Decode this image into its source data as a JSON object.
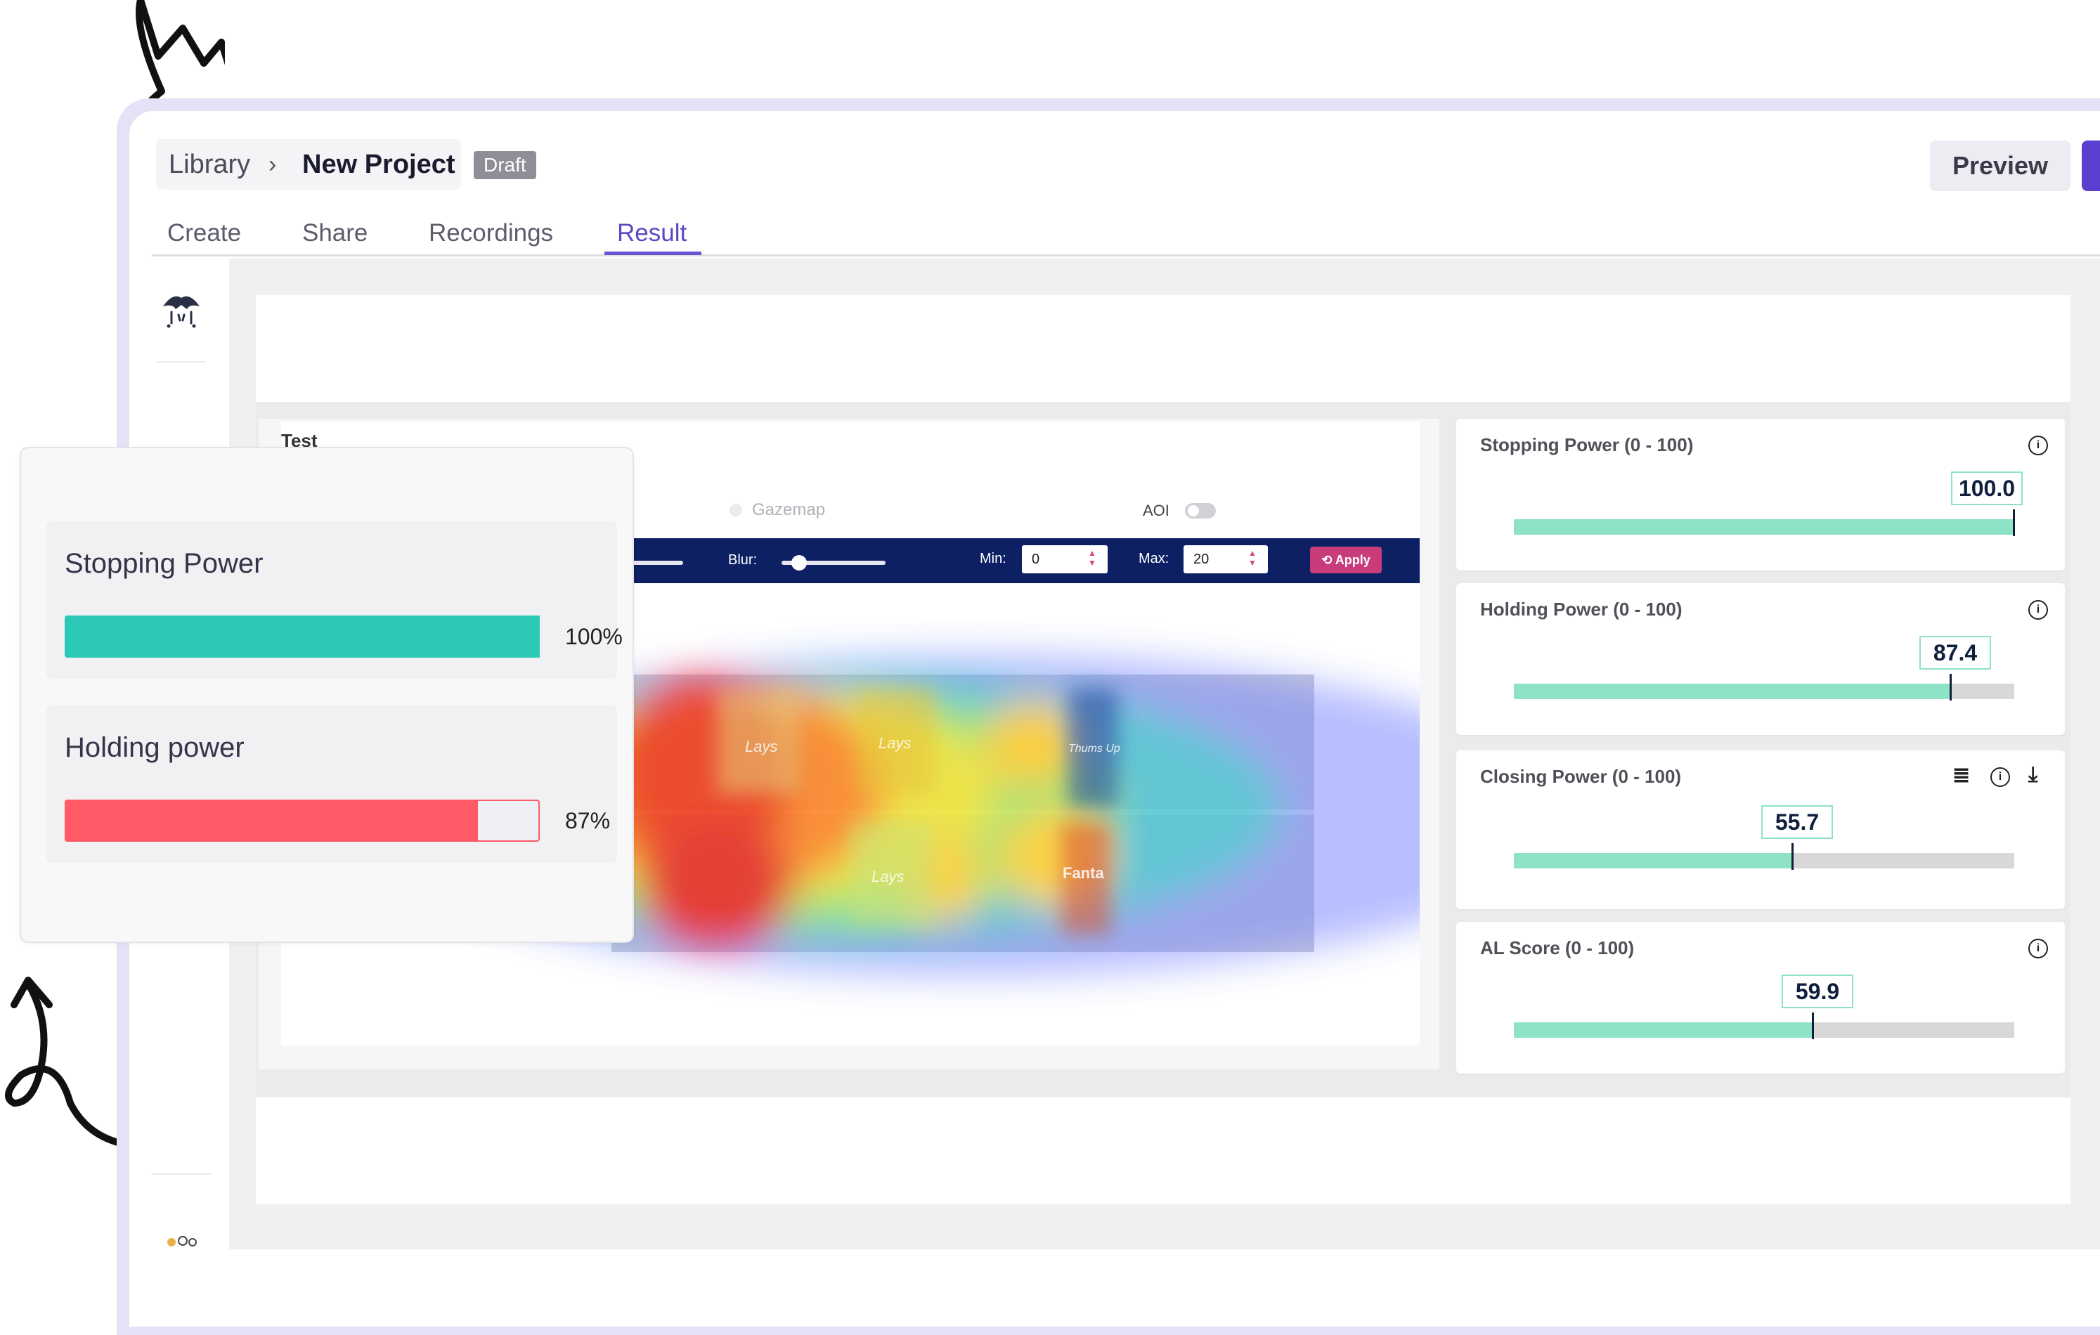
{
  "header": {
    "breadcrumb_root": "Library",
    "breadcrumb_separator": "›",
    "project_name": "New Project",
    "status_badge": "Draft",
    "preview_label": "Preview"
  },
  "tabs": [
    {
      "label": "Create",
      "active": false
    },
    {
      "label": "Share",
      "active": false
    },
    {
      "label": "Recordings",
      "active": false
    },
    {
      "label": "Result",
      "active": true
    }
  ],
  "heatmap_panel": {
    "title": "Test",
    "gazemap_label": "Gazemap",
    "aoi_label": "AOI",
    "aoi_enabled": false,
    "blur_label": "Blur:",
    "min_label": "Min:",
    "min_value": "0",
    "max_label": "Max:",
    "max_value": "20",
    "apply_label": "Apply",
    "shelf_labels": [
      "Lays",
      "Lays",
      "Lays",
      "Thums Up",
      "Fanta"
    ]
  },
  "metrics": [
    {
      "title": "Stopping Power (0 - 100)",
      "value": "100.0",
      "fraction": 1.0,
      "icons": [
        "info-icon"
      ]
    },
    {
      "title": "Holding Power (0 - 100)",
      "value": "87.4",
      "fraction": 0.874,
      "icons": [
        "info-icon"
      ]
    },
    {
      "title": "Closing Power (0 - 100)",
      "value": "55.7",
      "fraction": 0.557,
      "icons": [
        "report-icon",
        "info-icon",
        "download-icon"
      ]
    },
    {
      "title": "AL Score (0 - 100)",
      "value": "59.9",
      "fraction": 0.599,
      "icons": [
        "info-icon"
      ]
    }
  ],
  "popup": {
    "items": [
      {
        "label": "Stopping Power",
        "percent": "100%",
        "fraction": 1.0,
        "color": "#2cc9b6"
      },
      {
        "label": "Holding power",
        "percent": "87%",
        "fraction": 0.87,
        "color": "#ff5a66"
      }
    ]
  },
  "colors": {
    "accent": "#5b48c7",
    "toolbar": "#0d2063",
    "apply": "#c83c7c",
    "metric_fill": "#8ee3c7"
  }
}
